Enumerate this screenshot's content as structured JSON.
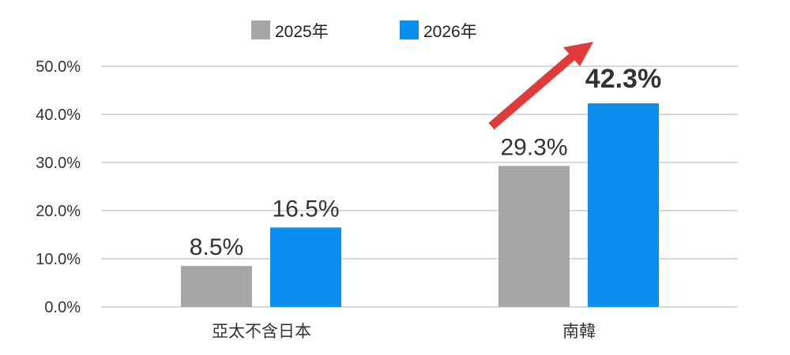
{
  "chart_data": {
    "type": "bar",
    "categories": [
      "亞太不含日本",
      "南韓"
    ],
    "series": [
      {
        "name": "2025年",
        "values": [
          8.5,
          29.3
        ],
        "labels": [
          "8.5%",
          "29.3%"
        ]
      },
      {
        "name": "2026年",
        "values": [
          16.5,
          42.3
        ],
        "labels": [
          "16.5%",
          "42.3%"
        ]
      }
    ],
    "ylim": [
      0,
      50
    ],
    "yticks": [
      "0.0%",
      "10.0%",
      "20.0%",
      "30.0%",
      "40.0%",
      "50.0%"
    ],
    "grid": true,
    "legend_position": "top-center",
    "annotation": "red upward arrow pointing to the 南韓 2026年 value",
    "colors": {
      "2025年": "#a6a6a6",
      "2026年": "#0a8ff0",
      "highlight_label": "#1a8fe8",
      "arrow": "#e03a3a",
      "grid": "#b0b0b0"
    }
  }
}
